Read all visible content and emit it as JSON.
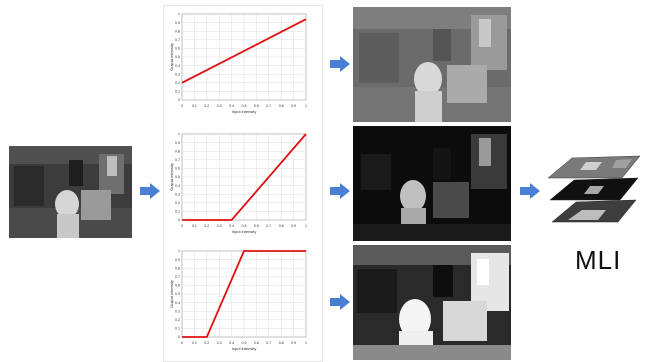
{
  "labels": {
    "mli": "MLI"
  },
  "axis_labels": {
    "x": "Input intensity",
    "y": "Output intensity"
  },
  "ticks": {
    "x": [
      "0",
      "0.1",
      "0.2",
      "0.3",
      "0.4",
      "0.5",
      "0.6",
      "0.7",
      "0.8",
      "0.9",
      "1"
    ],
    "y": [
      "0",
      "0.1",
      "0.2",
      "0.3",
      "0.4",
      "0.5",
      "0.6",
      "0.7",
      "0.8",
      "0.9",
      "1"
    ]
  },
  "colors": {
    "curve": "#e01010",
    "arrow": "#4a7fd6",
    "grid": "#dddddd"
  },
  "chart_data": [
    {
      "type": "line",
      "xlim": [
        0,
        1
      ],
      "ylim": [
        0,
        1
      ],
      "series": [
        {
          "x": [
            0,
            1
          ],
          "y": [
            0.2,
            0.94
          ]
        }
      ]
    },
    {
      "type": "line",
      "xlim": [
        0,
        1
      ],
      "ylim": [
        0,
        1
      ],
      "series": [
        {
          "x": [
            0,
            0.4,
            1
          ],
          "y": [
            0,
            0,
            1
          ]
        }
      ]
    },
    {
      "type": "line",
      "xlim": [
        0,
        1
      ],
      "ylim": [
        0,
        1
      ],
      "series": [
        {
          "x": [
            0,
            0.2,
            0.5,
            1
          ],
          "y": [
            0,
            0,
            1,
            1
          ]
        }
      ]
    }
  ]
}
